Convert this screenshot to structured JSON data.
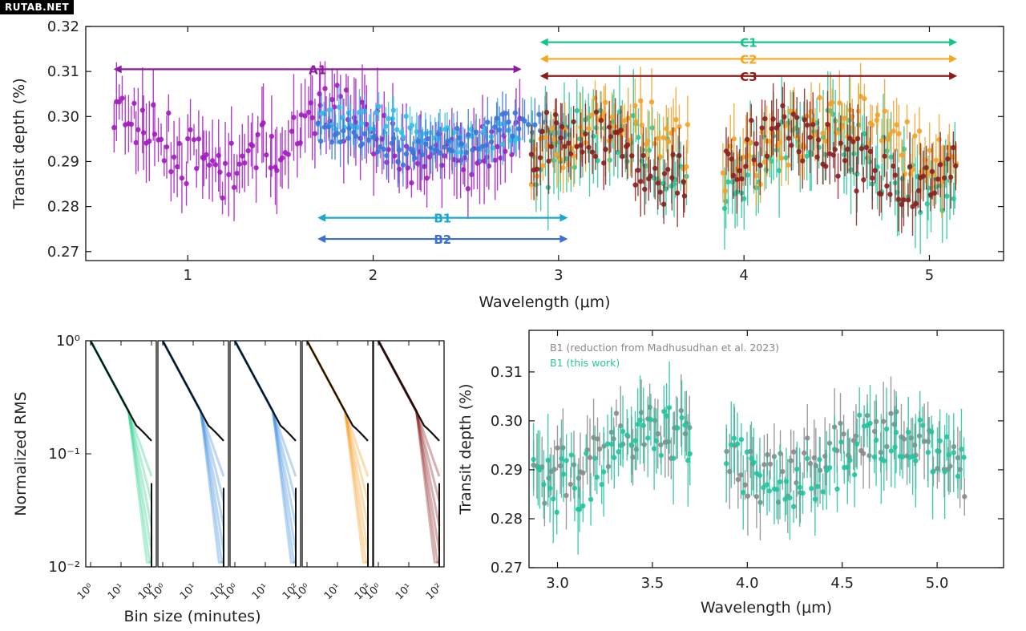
{
  "watermark": "RUTAB.NET",
  "chart_data": [
    {
      "type": "scatter",
      "panel": "top",
      "xlabel": "Wavelength (μm)",
      "ylabel": "Transit depth (%)",
      "xlim": [
        0.45,
        5.4
      ],
      "ylim": [
        0.268,
        0.32
      ],
      "xticks": [
        "1",
        "2",
        "3",
        "4",
        "5"
      ],
      "xtick_values": [
        1,
        2,
        3,
        4,
        5
      ],
      "yticks": [
        "0.27",
        "0.28",
        "0.29",
        "0.30",
        "0.31",
        "0.32"
      ],
      "ytick_values": [
        0.27,
        0.28,
        0.29,
        0.3,
        0.31,
        0.32
      ],
      "ranges": [
        {
          "label": "A1",
          "x": [
            0.6,
            2.8
          ],
          "y": 0.3105,
          "color": "#8e1a9e"
        },
        {
          "label": "B1",
          "x": [
            1.7,
            3.05
          ],
          "y": 0.2775,
          "color": "#17a9d6"
        },
        {
          "label": "B2",
          "x": [
            1.7,
            3.05
          ],
          "y": 0.2728,
          "color": "#3a6fd6"
        },
        {
          "label": "C1",
          "x": [
            2.9,
            5.15
          ],
          "y": 0.3165,
          "color": "#17c48d"
        },
        {
          "label": "C2",
          "x": [
            2.9,
            5.15
          ],
          "y": 0.3128,
          "color": "#f5a623"
        },
        {
          "label": "C3",
          "x": [
            2.9,
            5.15
          ],
          "y": 0.309,
          "color": "#8b1a1a"
        }
      ],
      "series": [
        {
          "name": "A1",
          "color": "#a21cc0",
          "x_range": [
            0.6,
            2.8
          ],
          "n": 150,
          "mean": 0.2945,
          "err": 0.0065,
          "amp": 0.006,
          "seed": 11
        },
        {
          "name": "B1",
          "color": "#36bde8",
          "x_range": [
            1.7,
            2.8
          ],
          "n": 70,
          "mean": 0.2975,
          "err": 0.0035,
          "amp": 0.0028,
          "seed": 23
        },
        {
          "name": "B2",
          "color": "#3d76d8",
          "x_range": [
            1.7,
            3.05
          ],
          "n": 80,
          "mean": 0.295,
          "err": 0.004,
          "amp": 0.003,
          "seed": 37
        },
        {
          "name": "C1",
          "color": "#27c79a",
          "x_range": [
            2.85,
            5.15
          ],
          "n": 160,
          "mean": 0.2905,
          "err": 0.007,
          "amp": 0.006,
          "seed": 41,
          "gap": [
            3.7,
            3.88
          ]
        },
        {
          "name": "C2",
          "color": "#f2a22b",
          "x_range": [
            2.85,
            5.15
          ],
          "n": 150,
          "mean": 0.2945,
          "err": 0.0055,
          "amp": 0.0055,
          "seed": 53,
          "gap": [
            3.7,
            3.88
          ]
        },
        {
          "name": "C3",
          "color": "#8c2020",
          "x_range": [
            2.85,
            5.15
          ],
          "n": 150,
          "mean": 0.291,
          "err": 0.0055,
          "amp": 0.0055,
          "seed": 67,
          "gap": [
            3.7,
            3.88
          ]
        }
      ]
    },
    {
      "type": "line",
      "panel": "bottom-left",
      "xlabel": "Bin size (minutes)",
      "ylabel": "Normalized RMS",
      "yscale": "log",
      "xscale": "log",
      "ylim": [
        0.01,
        1.0
      ],
      "yticks": [
        "10⁻²",
        "10⁻¹",
        "10⁰"
      ],
      "ytick_values": [
        0.01,
        0.1,
        1.0
      ],
      "xticks": [
        "10⁰",
        "10¹",
        "10²"
      ],
      "xtick_values": [
        1,
        10,
        100
      ],
      "subplots": [
        {
          "color": "#2fcf8c",
          "end_rms": 0.055
        },
        {
          "color": "#3b8be0",
          "end_rms": 0.05
        },
        {
          "color": "#3b8be0",
          "end_rms": 0.05
        },
        {
          "color": "#f59a1f",
          "end_rms": 0.055
        },
        {
          "color": "#8c2020",
          "end_rms": 0.055
        }
      ]
    },
    {
      "type": "scatter",
      "panel": "bottom-right",
      "xlabel": "Wavelength (μm)",
      "ylabel": "Transit depth (%)",
      "xlim": [
        2.85,
        5.35
      ],
      "ylim": [
        0.27,
        0.3185
      ],
      "xticks": [
        "3.0",
        "3.5",
        "4.0",
        "4.5",
        "5.0"
      ],
      "xtick_values": [
        3.0,
        3.5,
        4.0,
        4.5,
        5.0
      ],
      "yticks": [
        "0.27",
        "0.28",
        "0.29",
        "0.30",
        "0.31"
      ],
      "ytick_values": [
        0.27,
        0.28,
        0.29,
        0.3,
        0.31
      ],
      "legend": [
        {
          "label": "B1 (reduction from Madhusudhan et al. 2023)",
          "color": "#888888"
        },
        {
          "label": "B1 (this work)",
          "color": "#27c79a"
        }
      ],
      "series": [
        {
          "name": "B1 (reduction from Madhusudhan et al. 2023)",
          "color": "#8a8a8a",
          "x_range": [
            2.87,
            5.15
          ],
          "n": 130,
          "mean": 0.2935,
          "err": 0.0055,
          "amp": 0.005,
          "seed": 71,
          "gap": [
            3.7,
            3.88
          ]
        },
        {
          "name": "B1 (this work)",
          "color": "#23c4a0",
          "x_range": [
            2.87,
            5.15
          ],
          "n": 130,
          "mean": 0.2925,
          "err": 0.0065,
          "amp": 0.0055,
          "seed": 83,
          "gap": [
            3.7,
            3.88
          ]
        }
      ]
    }
  ]
}
